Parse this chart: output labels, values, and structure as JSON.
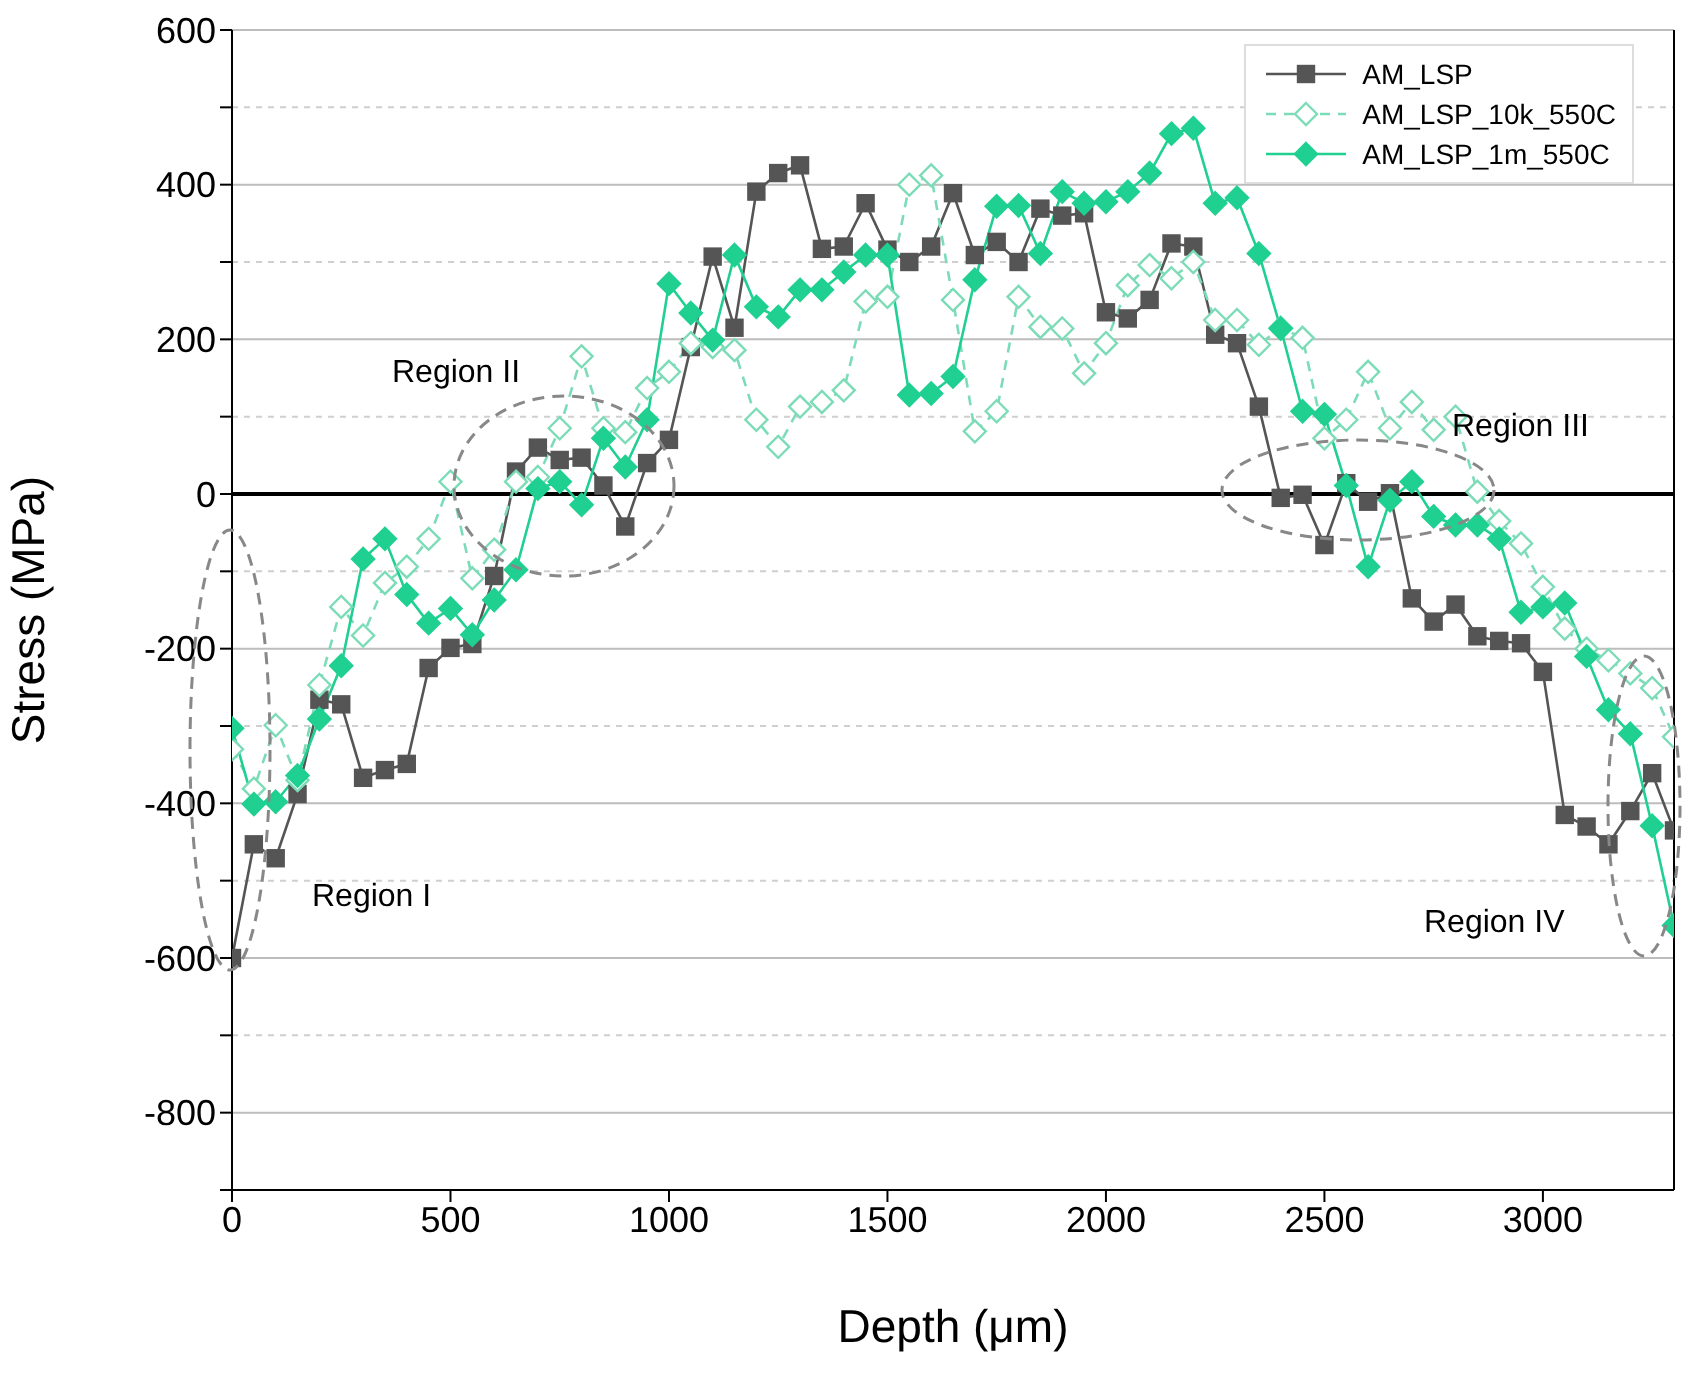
{
  "chart_data": {
    "type": "line",
    "xlabel": "Depth (μm)",
    "ylabel": "Stress (MPa)",
    "x": [
      0,
      50,
      100,
      150,
      200,
      250,
      300,
      350,
      400,
      450,
      500,
      550,
      600,
      650,
      700,
      750,
      800,
      850,
      900,
      950,
      1000,
      1050,
      1100,
      1150,
      1200,
      1250,
      1300,
      1350,
      1400,
      1450,
      1500,
      1550,
      1600,
      1650,
      1700,
      1750,
      1800,
      1850,
      1900,
      1950,
      2000,
      2050,
      2100,
      2150,
      2200,
      2250,
      2300,
      2350,
      2400,
      2450,
      2500,
      2550,
      2600,
      2650,
      2700,
      2750,
      2800,
      2850,
      2900,
      2950,
      3000,
      3050,
      3100,
      3150,
      3200,
      3250,
      3300
    ],
    "series": [
      {
        "name": "AM_LSP",
        "color": "#555555",
        "marker": "square",
        "line_style": "solid",
        "values": [
          -600,
          -453,
          -471,
          -388,
          -266,
          -272,
          -367,
          -357,
          -349,
          -225,
          -199,
          -194,
          -106,
          29,
          60,
          44,
          47,
          11,
          -42,
          40,
          70,
          190,
          307,
          215,
          391,
          415,
          425,
          317,
          320,
          376,
          316,
          300,
          320,
          389,
          309,
          326,
          300,
          369,
          360,
          363,
          235,
          227,
          251,
          324,
          320,
          206,
          195,
          113,
          -5,
          -1,
          -66,
          14,
          -10,
          1,
          -135,
          -165,
          -143,
          -184,
          -190,
          -193,
          -230,
          -415,
          -430,
          -453,
          -410,
          -361,
          -435
        ]
      },
      {
        "name": "AM_LSP_10k_550C",
        "color": "#7ddcb8",
        "marker": "diamond",
        "line_style": "dashed",
        "values": [
          -330,
          -381,
          -299,
          -370,
          -247,
          -146,
          -183,
          -115,
          -94,
          -58,
          16,
          -109,
          -72,
          16,
          22,
          85,
          178,
          85,
          80,
          137,
          158,
          195,
          190,
          186,
          96,
          61,
          113,
          119,
          134,
          249,
          255,
          400,
          412,
          251,
          81,
          107,
          255,
          216,
          214,
          156,
          195,
          270,
          296,
          279,
          300,
          225,
          225,
          193,
          215,
          202,
          72,
          96,
          158,
          85,
          119,
          83,
          100,
          3,
          -35,
          -64,
          -120,
          -174,
          -200,
          -215,
          -232,
          -251,
          -314
        ]
      },
      {
        "name": "AM_LSP_1m_550C",
        "color": "#1fd091",
        "marker": "diamond",
        "line_style": "solid",
        "values": [
          -303,
          -401,
          -398,
          -364,
          -291,
          -222,
          -84,
          -58,
          -130,
          -167,
          -148,
          -182,
          -137,
          -98,
          7,
          16,
          -14,
          72,
          35,
          96,
          272,
          234,
          199,
          309,
          242,
          229,
          264,
          264,
          287,
          309,
          309,
          128,
          130,
          152,
          277,
          372,
          373,
          311,
          391,
          376,
          378,
          391,
          415,
          466,
          473,
          376,
          383,
          311,
          214,
          107,
          103,
          11,
          -94,
          -8,
          16,
          -29,
          -40,
          -40,
          -58,
          -153,
          -146,
          -141,
          -210,
          -279,
          -310,
          -429,
          -558
        ]
      }
    ],
    "xlim": [
      0,
      3300
    ],
    "xticks": [
      0,
      500,
      1000,
      1500,
      2000,
      2500,
      3000
    ],
    "ylim": [
      -900,
      600
    ],
    "yticks": [
      {
        "value": -900,
        "label": null
      },
      -800,
      {
        "value": -700,
        "label": null
      },
      -600,
      {
        "value": -500,
        "label": null
      },
      -400,
      {
        "value": -300,
        "label": null
      },
      -200,
      {
        "value": -100,
        "label": null
      },
      0,
      {
        "value": 100,
        "label": null
      },
      200,
      {
        "value": 300,
        "label": null
      },
      400,
      {
        "value": 500,
        "label": null
      },
      600
    ],
    "grid": "y",
    "legend": "top right",
    "ref_lines": [
      {
        "axis": "y",
        "value": 0,
        "color": "#000000"
      }
    ],
    "annotations": [
      "Region I",
      "Region II",
      "Region III",
      "Region IV"
    ]
  }
}
